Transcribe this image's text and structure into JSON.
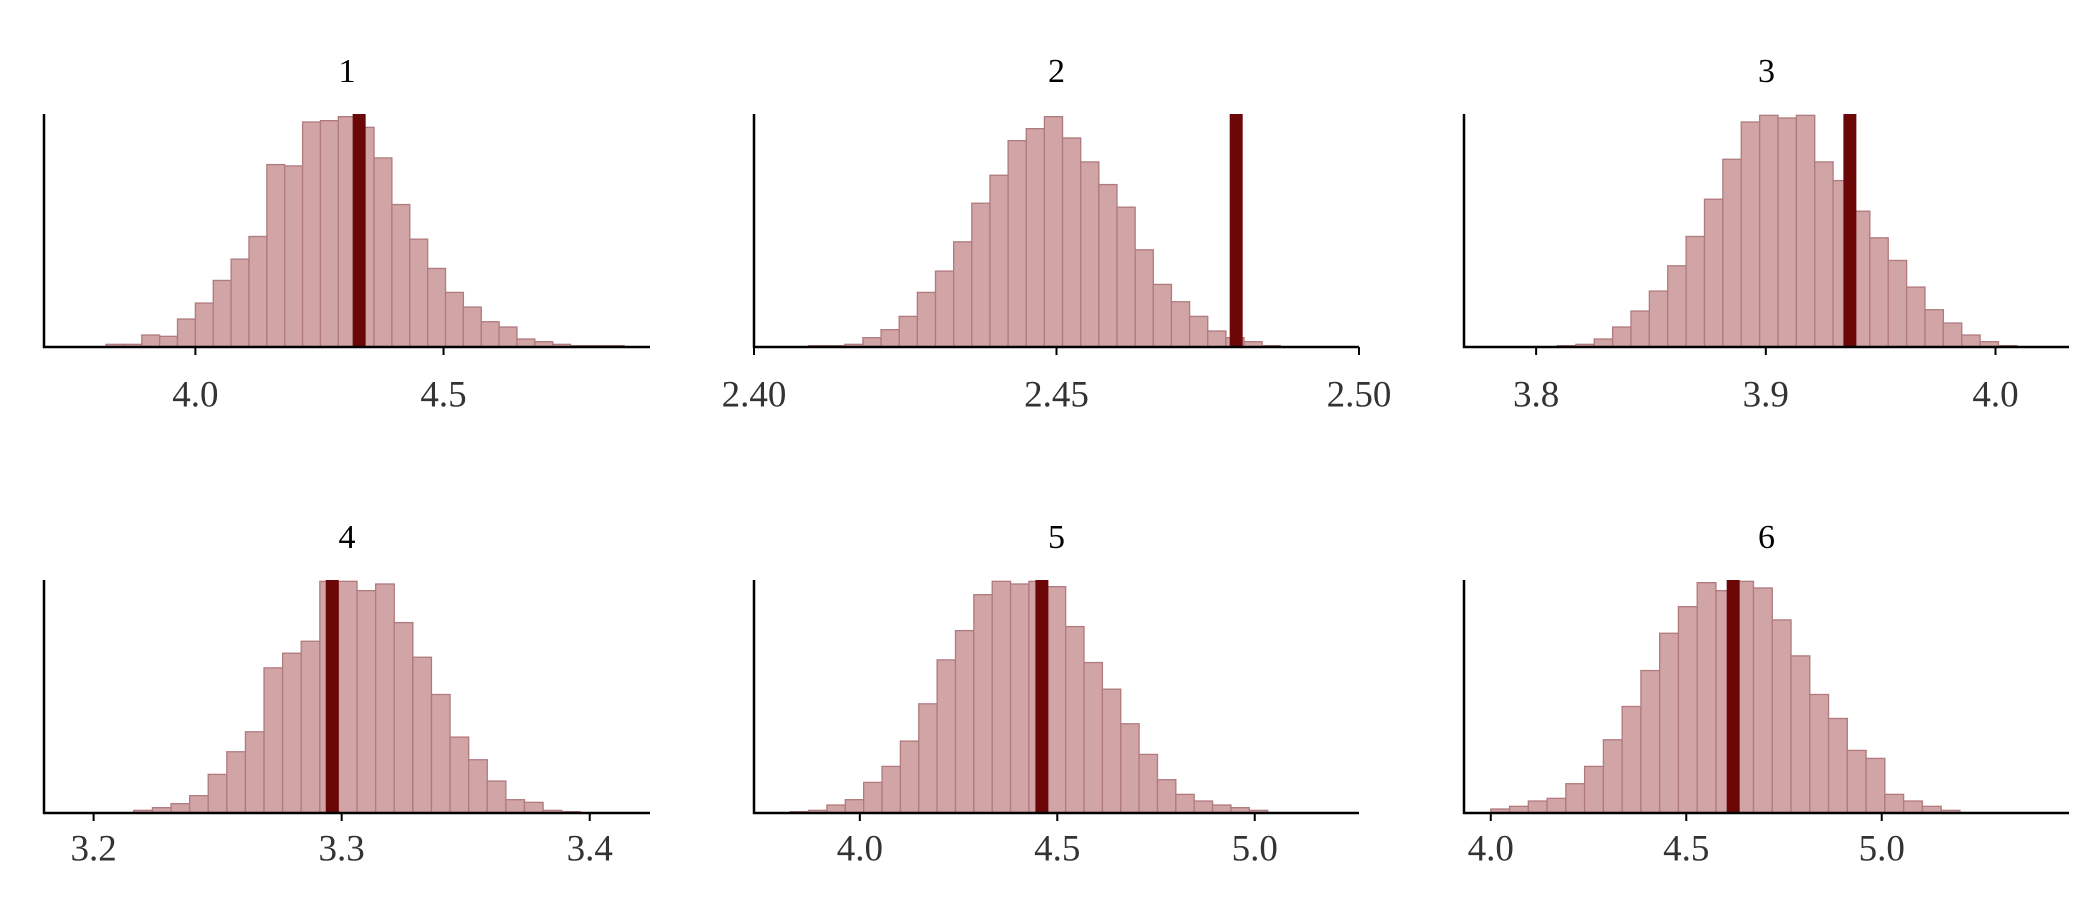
{
  "chart_data": [
    {
      "type": "histogram",
      "title": "1",
      "color": "#d1a4a6",
      "edge_color": "#b07a7e",
      "observed_color": "#6b0707",
      "bins": [
        3.82,
        3.856,
        3.892,
        3.928,
        3.964,
        4.0,
        4.036,
        4.072,
        4.108,
        4.144,
        4.18,
        4.216,
        4.252,
        4.288,
        4.324,
        4.36,
        4.396,
        4.432,
        4.468,
        4.504,
        4.54,
        4.576,
        4.612,
        4.648,
        4.684,
        4.72,
        4.756,
        4.792,
        4.828,
        4.864,
        4.9
      ],
      "values": [
        2,
        2,
        9,
        8,
        21,
        33,
        50,
        66,
        83,
        137,
        136,
        169,
        170,
        173,
        165,
        142,
        107,
        81,
        59,
        41,
        30,
        19,
        15,
        6,
        4,
        2,
        1,
        1,
        1,
        0
      ],
      "observed": 4.33,
      "xlim": [
        3.695,
        4.916
      ],
      "xticks": [
        {
          "value": 4,
          "label": "4.0"
        },
        4.5
      ],
      "ylim": [
        0,
        175
      ]
    },
    {
      "type": "histogram",
      "title": "2",
      "color": "#d1a4a6",
      "edge_color": "#b07a7e",
      "observed_color": "#6b0707",
      "bins": [
        2.409,
        2.412,
        2.415,
        2.418,
        2.421,
        2.424,
        2.427,
        2.43,
        2.433,
        2.436,
        2.439,
        2.442,
        2.445,
        2.448,
        2.451,
        2.454,
        2.457,
        2.46,
        2.463,
        2.466,
        2.469,
        2.472,
        2.475,
        2.478,
        2.481,
        2.484,
        2.487,
        2.49,
        2.493
      ],
      "values": [
        1,
        1,
        2,
        7,
        13,
        23,
        41,
        57,
        79,
        108,
        129,
        155,
        164,
        173,
        157,
        139,
        122,
        105,
        73,
        47,
        34,
        23,
        12,
        7,
        4,
        1,
        0,
        0
      ],
      "observed": 2.4797,
      "xlim": [
        2.4,
        2.5
      ],
      "xticks": [
        {
          "value": 2.4,
          "label": "2.40"
        },
        2.45,
        {
          "value": 2.5,
          "label": "2.50"
        }
      ],
      "ylim": [
        0,
        175
      ]
    },
    {
      "type": "histogram",
      "title": "3",
      "color": "#d1a4a6",
      "edge_color": "#b07a7e",
      "observed_color": "#6b0707",
      "bins": [
        3.8093,
        3.8173,
        3.8253,
        3.8333,
        3.8413,
        3.8493,
        3.8573,
        3.8653,
        3.8733,
        3.8813,
        3.8893,
        3.8973,
        3.9053,
        3.9133,
        3.9213,
        3.9293,
        3.9373,
        3.9453,
        3.9533,
        3.9613,
        3.9693,
        3.9773,
        3.9853,
        3.9933,
        4.0013,
        4.0093
      ],
      "values": [
        1,
        2,
        6,
        15,
        27,
        42,
        61,
        83,
        111,
        141,
        169,
        174,
        172,
        174,
        139,
        125,
        102,
        82,
        65,
        45,
        28,
        18,
        9,
        4,
        1
      ],
      "observed": 3.9366,
      "xlim": [
        3.7686,
        4.032
      ],
      "xticks": [
        3.8,
        3.9,
        {
          "value": 4,
          "label": "4.0"
        }
      ],
      "ylim": [
        0,
        175
      ]
    },
    {
      "type": "histogram",
      "title": "4",
      "color": "#d1a4a6",
      "edge_color": "#b07a7e",
      "observed_color": "#6b0707",
      "bins": [
        3.2162,
        3.2237,
        3.2312,
        3.2387,
        3.2462,
        3.2537,
        3.2612,
        3.2687,
        3.2762,
        3.2837,
        3.2912,
        3.2987,
        3.3062,
        3.3137,
        3.3212,
        3.3287,
        3.3362,
        3.3437,
        3.3512,
        3.3587,
        3.3662,
        3.3737,
        3.3812,
        3.3887,
        3.3962
      ],
      "values": [
        2,
        4,
        7,
        13,
        29,
        46,
        61,
        109,
        120,
        129,
        174,
        174,
        167,
        172,
        143,
        117,
        89,
        57,
        40,
        24,
        10,
        8,
        2,
        1
      ],
      "observed": 3.2962,
      "xlim": [
        3.18,
        3.4243
      ],
      "xticks": [
        3.2,
        3.3,
        3.4
      ],
      "ylim": [
        0,
        175
      ]
    },
    {
      "type": "histogram",
      "title": "5",
      "color": "#d1a4a6",
      "edge_color": "#b07a7e",
      "observed_color": "#6b0707",
      "bins": [
        3.8237,
        3.8702,
        3.9167,
        3.9632,
        4.0097,
        4.0562,
        4.1027,
        4.1492,
        4.1957,
        4.2422,
        4.2887,
        4.3352,
        4.3817,
        4.4282,
        4.4747,
        4.5212,
        4.5677,
        4.6142,
        4.6607,
        4.7072,
        4.7537,
        4.8002,
        4.8467,
        4.8932,
        4.9397,
        4.9862,
        5.0327
      ],
      "values": [
        1,
        2,
        6,
        10,
        23,
        35,
        54,
        82,
        115,
        137,
        164,
        174,
        172,
        174,
        170,
        140,
        113,
        93,
        67,
        44,
        25,
        14,
        9,
        6,
        4,
        2
      ],
      "observed": 4.461,
      "xlim": [
        3.732,
        5.264
      ],
      "xticks": [
        {
          "value": 4,
          "label": "4.0"
        },
        4.5,
        {
          "value": 5,
          "label": "5.0"
        }
      ],
      "ylim": [
        0,
        175
      ]
    },
    {
      "type": "histogram",
      "title": "6",
      "color": "#d1a4a6",
      "edge_color": "#b07a7e",
      "observed_color": "#6b0707",
      "bins": [
        4.0,
        4.048,
        4.096,
        4.144,
        4.192,
        4.24,
        4.288,
        4.336,
        4.384,
        4.432,
        4.48,
        4.528,
        4.576,
        4.624,
        4.672,
        4.72,
        4.768,
        4.816,
        4.864,
        4.912,
        4.96,
        5.008,
        5.056,
        5.104,
        5.152,
        5.2
      ],
      "values": [
        3,
        5,
        9,
        11,
        22,
        35,
        55,
        80,
        107,
        135,
        155,
        173,
        167,
        174,
        169,
        145,
        118,
        89,
        71,
        47,
        41,
        14,
        9,
        5,
        2
      ],
      "observed": 4.62,
      "xlim": [
        3.9315,
        5.479
      ],
      "xticks": [
        {
          "value": 4,
          "label": "4.0"
        },
        4.5,
        {
          "value": 5,
          "label": "5.0"
        }
      ],
      "ylim": [
        0,
        175
      ]
    }
  ]
}
